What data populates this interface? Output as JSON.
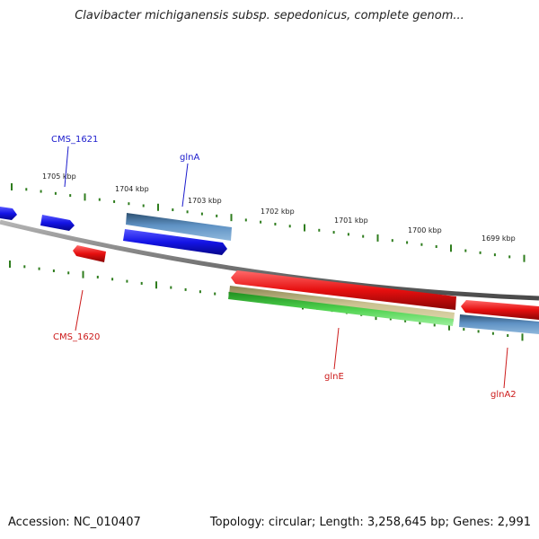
{
  "title": "Clavibacter michiganensis subsp. sepedonicus, complete genom...",
  "footer": {
    "accession": "Accession: NC_010407",
    "summary": "Topology: circular; Length: 3,258,645 bp; Genes: 2,991"
  },
  "colors": {
    "backbone": "#8a8a8a",
    "tick": "#2f7d1e",
    "forward_gene": "#1414e6",
    "reverse_gene": "#e60f0f",
    "rna_blue": "#4a7fb0",
    "rna_tan": "#b8b07a",
    "rna_green": "#3cc43c",
    "label_blue": "#1a1acc",
    "label_red": "#cc1a1a"
  },
  "scale": {
    "labels": [
      "1705 kbp",
      "1704 kbp",
      "1703 kbp",
      "1702 kbp",
      "1701 kbp",
      "1700 kbp",
      "1699 kbp"
    ]
  },
  "genes": {
    "cms1621": "CMS_1621",
    "glnA": "glnA",
    "cms1620": "CMS_1620",
    "glnE": "glnE",
    "glnA2": "glnA2"
  }
}
